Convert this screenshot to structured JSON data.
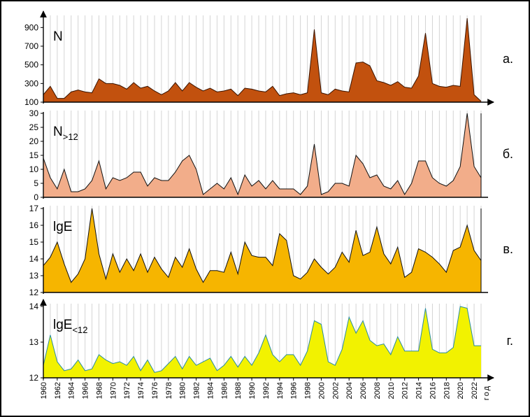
{
  "x_axis": {
    "unit": "год"
  },
  "chart_data": [
    {
      "type": "area",
      "panel_label": "а.",
      "series_name": "N",
      "series_sub": "",
      "fill": "#c2510e",
      "stroke": "#3b1400",
      "ylim": [
        100,
        1000
      ],
      "yticks": [
        100,
        300,
        500,
        700,
        900
      ],
      "x": [
        1960,
        1961,
        1962,
        1963,
        1964,
        1965,
        1966,
        1967,
        1968,
        1969,
        1970,
        1971,
        1972,
        1973,
        1974,
        1975,
        1976,
        1977,
        1978,
        1979,
        1980,
        1981,
        1982,
        1983,
        1984,
        1985,
        1986,
        1987,
        1988,
        1989,
        1990,
        1991,
        1992,
        1993,
        1994,
        1995,
        1996,
        1997,
        1998,
        1999,
        2000,
        2001,
        2002,
        2003,
        2004,
        2005,
        2006,
        2007,
        2008,
        2009,
        2010,
        2011,
        2012,
        2013,
        2014,
        2015,
        2016,
        2017,
        2018,
        2019,
        2020,
        2021,
        2022,
        2023
      ],
      "values": [
        180,
        270,
        140,
        140,
        210,
        230,
        210,
        200,
        350,
        300,
        300,
        280,
        240,
        310,
        250,
        270,
        220,
        180,
        220,
        310,
        220,
        310,
        260,
        220,
        250,
        210,
        220,
        240,
        170,
        250,
        240,
        220,
        210,
        270,
        170,
        190,
        200,
        180,
        200,
        880,
        200,
        180,
        240,
        220,
        210,
        520,
        530,
        490,
        330,
        310,
        280,
        320,
        260,
        250,
        380,
        840,
        300,
        270,
        260,
        280,
        270,
        1000,
        180,
        110
      ]
    },
    {
      "type": "area",
      "panel_label": "б.",
      "series_name": "N",
      "series_sub": ">12",
      "fill": "#f2ad8a",
      "stroke": "#111111",
      "ylim": [
        0,
        30
      ],
      "yticks": [
        0,
        5,
        10,
        15,
        20,
        25,
        30
      ],
      "x": [
        1960,
        1961,
        1962,
        1963,
        1964,
        1965,
        1966,
        1967,
        1968,
        1969,
        1970,
        1971,
        1972,
        1973,
        1974,
        1975,
        1976,
        1977,
        1978,
        1979,
        1980,
        1981,
        1982,
        1983,
        1984,
        1985,
        1986,
        1987,
        1988,
        1989,
        1990,
        1991,
        1992,
        1993,
        1994,
        1995,
        1996,
        1997,
        1998,
        1999,
        2000,
        2001,
        2002,
        2003,
        2004,
        2005,
        2006,
        2007,
        2008,
        2009,
        2010,
        2011,
        2012,
        2013,
        2014,
        2015,
        2016,
        2017,
        2018,
        2019,
        2020,
        2021,
        2022,
        2023
      ],
      "values": [
        14,
        7,
        3,
        10,
        2,
        2,
        3,
        6,
        13,
        3,
        7,
        6,
        7,
        9,
        9,
        4,
        7,
        6,
        6,
        9,
        13,
        15,
        10,
        1,
        3,
        5,
        3,
        7,
        1,
        8,
        4,
        6,
        3,
        6,
        3,
        3,
        3,
        1,
        4,
        19,
        1,
        2,
        5,
        5,
        4,
        15,
        12,
        7,
        8,
        4,
        3,
        6,
        1,
        5,
        13,
        13,
        7,
        5,
        4,
        6,
        11,
        30,
        11,
        7
      ]
    },
    {
      "type": "area",
      "panel_label": "в.",
      "series_name": "lgE",
      "series_sub": "",
      "fill": "#f6b500",
      "stroke": "#111111",
      "ylim": [
        12,
        17
      ],
      "yticks": [
        12,
        13,
        14,
        15,
        16,
        17
      ],
      "x": [
        1960,
        1961,
        1962,
        1963,
        1964,
        1965,
        1966,
        1967,
        1968,
        1969,
        1970,
        1971,
        1972,
        1973,
        1974,
        1975,
        1976,
        1977,
        1978,
        1979,
        1980,
        1981,
        1982,
        1983,
        1984,
        1985,
        1986,
        1987,
        1988,
        1989,
        1990,
        1991,
        1992,
        1993,
        1994,
        1995,
        1996,
        1997,
        1998,
        1999,
        2000,
        2001,
        2002,
        2003,
        2004,
        2005,
        2006,
        2007,
        2008,
        2009,
        2010,
        2011,
        2012,
        2013,
        2014,
        2015,
        2016,
        2017,
        2018,
        2019,
        2020,
        2021,
        2022,
        2023
      ],
      "values": [
        13.6,
        14.1,
        15.0,
        13.7,
        12.6,
        13.1,
        14.0,
        17.0,
        14.3,
        12.8,
        14.3,
        13.2,
        14.0,
        13.3,
        14.3,
        13.2,
        14.1,
        13.4,
        12.9,
        14.1,
        13.5,
        14.6,
        13.4,
        12.6,
        13.3,
        13.3,
        13.2,
        14.4,
        13.1,
        15.0,
        14.2,
        14.1,
        14.1,
        13.6,
        15.5,
        15.1,
        13.0,
        12.8,
        13.2,
        14.0,
        13.5,
        13.1,
        13.5,
        14.4,
        13.8,
        15.7,
        14.2,
        14.4,
        15.9,
        14.3,
        13.7,
        14.7,
        12.9,
        13.2,
        14.6,
        14.4,
        14.1,
        13.7,
        13.2,
        14.5,
        14.7,
        16.0,
        14.5,
        13.9
      ]
    },
    {
      "type": "area",
      "panel_label": "г.",
      "series_name": "lgE",
      "series_sub": "<12",
      "fill": "#f2f200",
      "stroke": "#2a8ca0",
      "ylim": [
        12,
        14
      ],
      "yticks": [
        12,
        13,
        14
      ],
      "x": [
        1960,
        1961,
        1962,
        1963,
        1964,
        1965,
        1966,
        1967,
        1968,
        1969,
        1970,
        1971,
        1972,
        1973,
        1974,
        1975,
        1976,
        1977,
        1978,
        1979,
        1980,
        1981,
        1982,
        1983,
        1984,
        1985,
        1986,
        1987,
        1988,
        1989,
        1990,
        1991,
        1992,
        1993,
        1994,
        1995,
        1996,
        1997,
        1998,
        1999,
        2000,
        2001,
        2002,
        2003,
        2004,
        2005,
        2006,
        2007,
        2008,
        2009,
        2010,
        2011,
        2012,
        2013,
        2014,
        2015,
        2016,
        2017,
        2018,
        2019,
        2020,
        2021,
        2022,
        2023
      ],
      "values": [
        12.35,
        13.2,
        12.45,
        12.2,
        12.25,
        12.5,
        12.2,
        12.25,
        12.65,
        12.5,
        12.4,
        12.45,
        12.35,
        12.6,
        12.2,
        12.5,
        12.15,
        12.2,
        12.4,
        12.6,
        12.25,
        12.6,
        12.35,
        12.45,
        12.55,
        12.2,
        12.35,
        12.6,
        12.3,
        12.6,
        12.35,
        12.7,
        13.2,
        12.65,
        12.45,
        12.65,
        12.65,
        12.35,
        12.75,
        13.6,
        13.5,
        12.45,
        12.35,
        12.8,
        13.7,
        13.25,
        13.6,
        13.05,
        12.9,
        12.95,
        12.65,
        13.15,
        12.75,
        12.75,
        12.75,
        13.95,
        12.8,
        12.7,
        12.7,
        12.85,
        14.0,
        13.95,
        12.9,
        12.9
      ]
    }
  ]
}
